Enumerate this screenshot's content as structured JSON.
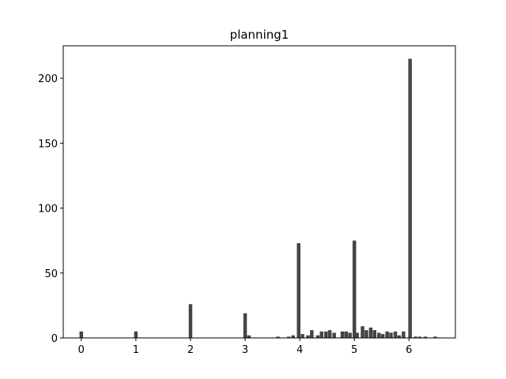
{
  "chart_data": {
    "type": "bar",
    "title": "planning1",
    "xlabel": "",
    "ylabel": "",
    "xlim": [
      -0.33,
      6.85
    ],
    "ylim": [
      0,
      225
    ],
    "grid": false,
    "bar_color": "#454545",
    "bar_width": 0.065,
    "x_ticks": [
      0,
      1,
      2,
      3,
      4,
      5,
      6
    ],
    "y_ticks": [
      0,
      50,
      100,
      150,
      200
    ],
    "x": [
      0.0,
      1.0,
      2.0,
      3.0,
      3.07,
      3.6,
      3.8,
      3.88,
      3.98,
      4.05,
      4.15,
      4.22,
      4.33,
      4.4,
      4.48,
      4.55,
      4.63,
      4.78,
      4.85,
      4.92,
      5.0,
      5.05,
      5.15,
      5.22,
      5.3,
      5.37,
      5.45,
      5.52,
      5.6,
      5.67,
      5.75,
      5.82,
      5.9,
      6.02,
      6.12,
      6.2,
      6.3,
      6.48
    ],
    "values": [
      5,
      5,
      26,
      19,
      2,
      1,
      1,
      2,
      73,
      3,
      2,
      6,
      2,
      5,
      5,
      6,
      4,
      5,
      5,
      4,
      75,
      4,
      9,
      6,
      8,
      6,
      4,
      3,
      5,
      4,
      5,
      2,
      5,
      215,
      1,
      1,
      1,
      1
    ]
  }
}
